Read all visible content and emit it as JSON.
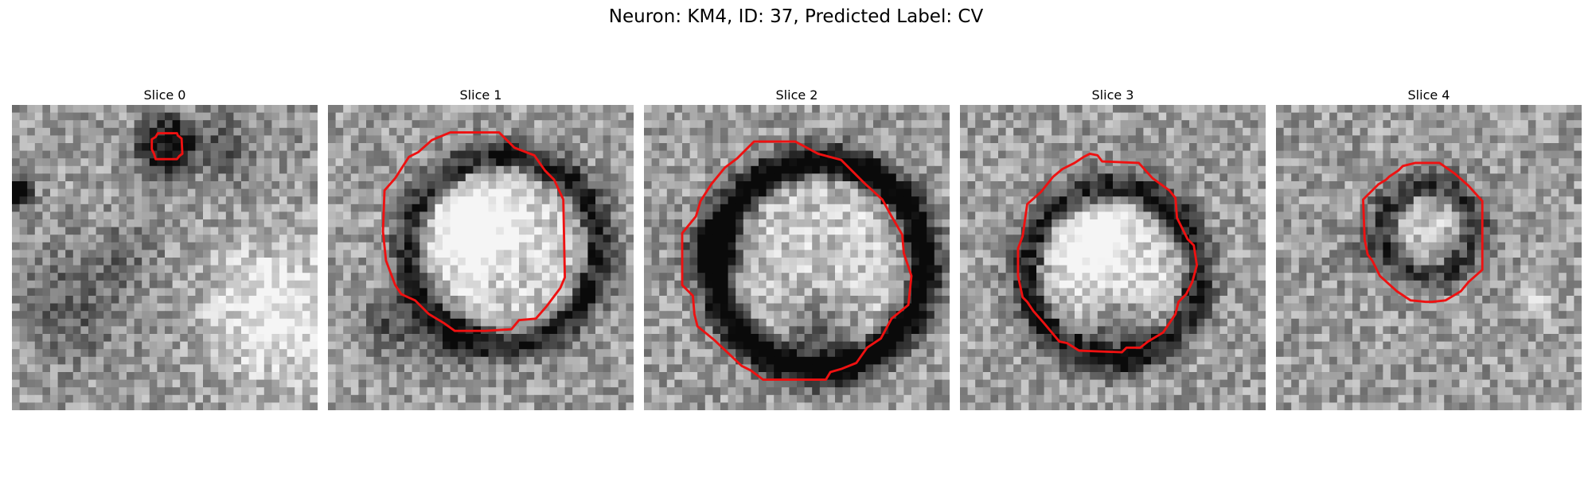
{
  "figure": {
    "title": "Neuron: KM4, ID: 37, Predicted Label: CV"
  },
  "slices": [
    {
      "title": "Slice 0",
      "ring": {
        "cx": 10.1,
        "cy": 2.7,
        "r": 0.9,
        "sharp": 0.55
      },
      "blobs": [
        {
          "x": 0.3,
          "y": 5.7,
          "s": 0.9,
          "a": -80
        },
        {
          "x": 7.7,
          "y": 9.5,
          "s": 1.8,
          "a": -20
        },
        {
          "x": 13.8,
          "y": 2.7,
          "s": 2.5,
          "a": -25
        },
        {
          "x": 22,
          "y": 2,
          "s": 3,
          "a": -10
        },
        {
          "x": 17.5,
          "y": 13.7,
          "s": 4.5,
          "a": 40
        },
        {
          "x": 4,
          "y": 13,
          "s": 3.5,
          "a": -25
        }
      ],
      "contour": [
        [
          10,
          1.85
        ],
        [
          10.8,
          1.85
        ],
        [
          10.85,
          2
        ],
        [
          11.1,
          2.2
        ],
        [
          11.15,
          3.2
        ],
        [
          10.95,
          3.35
        ],
        [
          10.8,
          3.55
        ],
        [
          9.4,
          3.55
        ],
        [
          9.3,
          3.2
        ],
        [
          9.15,
          2.9
        ],
        [
          9.15,
          2.25
        ],
        [
          9.4,
          2.1
        ],
        [
          9.55,
          1.85
        ]
      ]
    },
    {
      "title": "Slice 1",
      "ring": {
        "cx": 11.5,
        "cy": 9.5,
        "r": 6.2,
        "sharp": 0.55
      },
      "blobs": [
        {
          "x": 9.5,
          "y": 8,
          "s": 3,
          "a": 45
        },
        {
          "x": 4,
          "y": 14.5,
          "s": 2,
          "a": -30
        },
        {
          "x": 8.2,
          "y": 15.3,
          "s": 2,
          "a": -25
        }
      ],
      "contour": [
        [
          8,
          1.8
        ],
        [
          11.2,
          1.8
        ],
        [
          12.2,
          2.8
        ],
        [
          13.5,
          3.3
        ],
        [
          14.2,
          4.3
        ],
        [
          14.8,
          4.9
        ],
        [
          15.4,
          6.2
        ],
        [
          15.5,
          11.3
        ],
        [
          15.2,
          12
        ],
        [
          14.3,
          13.2
        ],
        [
          13.6,
          14
        ],
        [
          12.5,
          14.1
        ],
        [
          12,
          14.7
        ],
        [
          10.3,
          14.8
        ],
        [
          8.3,
          14.8
        ],
        [
          7.6,
          14.3
        ],
        [
          6.6,
          13.7
        ],
        [
          5.7,
          12.8
        ],
        [
          4.8,
          12.4
        ],
        [
          4.4,
          11.8
        ],
        [
          3.8,
          10.2
        ],
        [
          3.6,
          8.3
        ],
        [
          3.7,
          5.6
        ],
        [
          4.4,
          4.8
        ],
        [
          5.3,
          3.4
        ],
        [
          5.9,
          3.1
        ],
        [
          6.8,
          2.3
        ]
      ]
    },
    {
      "title": "Slice 2",
      "ring": {
        "cx": 11.5,
        "cy": 10.5,
        "r": 6.8,
        "sharp": 0.8
      },
      "blobs": [
        {
          "x": 4.7,
          "y": 9.5,
          "s": 1.8,
          "a": -60
        },
        {
          "x": 11.5,
          "y": 15,
          "s": 2.5,
          "a": -40
        }
      ],
      "contour": [
        [
          7.2,
          2.4
        ],
        [
          9.9,
          2.4
        ],
        [
          11.4,
          3.2
        ],
        [
          12.9,
          3.6
        ],
        [
          14.4,
          5.1
        ],
        [
          15.6,
          6.2
        ],
        [
          16.2,
          7.3
        ],
        [
          16.9,
          8.5
        ],
        [
          17,
          9.7
        ],
        [
          17.5,
          11.2
        ],
        [
          17.3,
          13.1
        ],
        [
          16.2,
          14
        ],
        [
          15.5,
          15.3
        ],
        [
          14.6,
          15.9
        ],
        [
          13.9,
          16.9
        ],
        [
          12.9,
          17.3
        ],
        [
          12.2,
          17.5
        ],
        [
          11.9,
          18
        ],
        [
          7.8,
          18
        ],
        [
          7,
          17.4
        ],
        [
          6.4,
          17.1
        ],
        [
          4.6,
          15.4
        ],
        [
          3.5,
          14.5
        ],
        [
          3.3,
          13.7
        ],
        [
          3.2,
          12.5
        ],
        [
          2.5,
          11.8
        ],
        [
          2.5,
          8.4
        ],
        [
          3.4,
          7.3
        ],
        [
          3.7,
          6.3
        ],
        [
          4.4,
          5.2
        ],
        [
          5.3,
          4.1
        ],
        [
          6.1,
          3.5
        ]
      ]
    },
    {
      "title": "Slice 3",
      "ring": {
        "cx": 10,
        "cy": 11,
        "r": 5.6,
        "sharp": 0.55
      },
      "blobs": [
        {
          "x": 8.8,
          "y": 9,
          "s": 2.6,
          "a": 45
        },
        {
          "x": 10,
          "y": 14.5,
          "s": 2,
          "a": -35
        }
      ],
      "contour": [
        [
          8.1,
          3.4
        ],
        [
          8.5,
          3.2
        ],
        [
          9,
          3.3
        ],
        [
          9.3,
          3.7
        ],
        [
          11.7,
          3.8
        ],
        [
          12.6,
          4.8
        ],
        [
          13.7,
          5.6
        ],
        [
          14.1,
          6.1
        ],
        [
          14.2,
          7.4
        ],
        [
          14.9,
          8.8
        ],
        [
          15.3,
          9.2
        ],
        [
          15.5,
          10.5
        ],
        [
          15.2,
          11.6
        ],
        [
          14.8,
          12.4
        ],
        [
          14.3,
          12.9
        ],
        [
          14.1,
          13.7
        ],
        [
          13.3,
          14.9
        ],
        [
          12.3,
          15.5
        ],
        [
          11.8,
          15.9
        ],
        [
          10.9,
          15.9
        ],
        [
          10.6,
          16.2
        ],
        [
          7.8,
          16.1
        ],
        [
          7,
          15.6
        ],
        [
          6.5,
          15.5
        ],
        [
          5.5,
          14.3
        ],
        [
          4.8,
          13.5
        ],
        [
          4.4,
          12.9
        ],
        [
          4.1,
          12.6
        ],
        [
          3.8,
          11.2
        ],
        [
          3.8,
          9.4
        ],
        [
          4.1,
          8.6
        ],
        [
          4.4,
          6.5
        ],
        [
          5.3,
          5.7
        ],
        [
          6.1,
          4.7
        ],
        [
          6.7,
          4.2
        ],
        [
          7.5,
          3.8
        ]
      ]
    },
    {
      "title": "Slice 4",
      "ring": {
        "cx": 10,
        "cy": 8.2,
        "r": 3,
        "sharp": 0.4
      },
      "blobs": [
        {
          "x": 10,
          "y": 8.5,
          "s": 3.5,
          "a": 0
        },
        {
          "x": 5.5,
          "y": 9.5,
          "s": 1.5,
          "a": -10
        },
        {
          "x": 17,
          "y": 13,
          "s": 1.2,
          "a": 20
        }
      ],
      "contour": [
        [
          9.1,
          3.8
        ],
        [
          10.7,
          3.8
        ],
        [
          11.7,
          4.5
        ],
        [
          12.6,
          5.3
        ],
        [
          13.5,
          6.3
        ],
        [
          13.5,
          10.8
        ],
        [
          12.6,
          11.6
        ],
        [
          12.1,
          12.2
        ],
        [
          11.6,
          12.5
        ],
        [
          11.1,
          12.8
        ],
        [
          10.2,
          12.9
        ],
        [
          9.8,
          12.9
        ],
        [
          8.8,
          12.8
        ],
        [
          7.9,
          12.2
        ],
        [
          6.8,
          11.2
        ],
        [
          6.3,
          10.2
        ],
        [
          6,
          9.8
        ],
        [
          5.8,
          8.8
        ],
        [
          5.7,
          6.2
        ],
        [
          6.7,
          5.2
        ],
        [
          7.2,
          4.9
        ],
        [
          7.4,
          4.7
        ],
        [
          8,
          4.3
        ],
        [
          8.3,
          4
        ]
      ]
    }
  ]
}
